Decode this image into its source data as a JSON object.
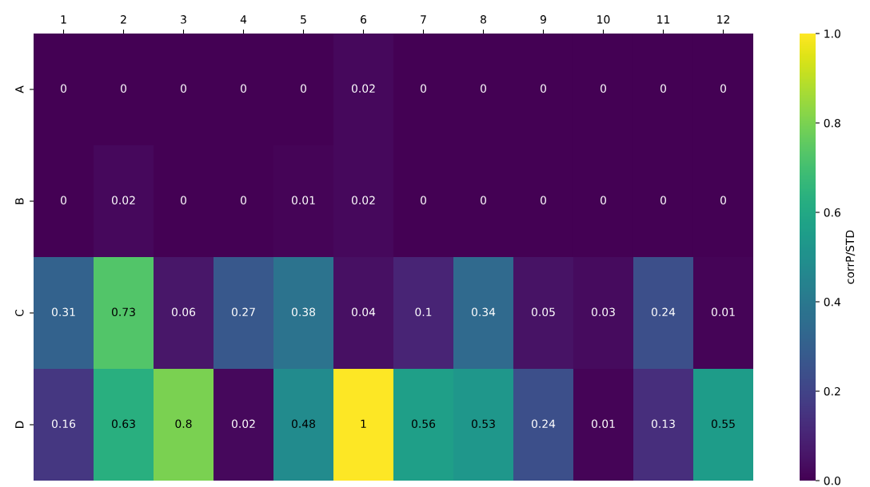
{
  "chart_data": {
    "type": "heatmap",
    "categories": [
      "1",
      "2",
      "3",
      "4",
      "5",
      "6",
      "7",
      "8",
      "9",
      "10",
      "11",
      "12"
    ],
    "y_categories": [
      "A",
      "B",
      "C",
      "D"
    ],
    "cells": [
      [
        0,
        0,
        0,
        0,
        0,
        0.02,
        0,
        0,
        0,
        0,
        0,
        0
      ],
      [
        0,
        0.02,
        0,
        0,
        0.01,
        0.02,
        0,
        0,
        0,
        0,
        0,
        0
      ],
      [
        0.31,
        0.73,
        0.06,
        0.27,
        0.38,
        0.04,
        0.1,
        0.34,
        0.05,
        0.03,
        0.24,
        0.01
      ],
      [
        0.16,
        0.63,
        0.8,
        0.02,
        0.48,
        1,
        0.56,
        0.53,
        0.24,
        0.01,
        0.13,
        0.55
      ]
    ],
    "data_labels": true,
    "clabel": "corrP/STD",
    "clim": [
      0,
      1
    ],
    "cticks": [
      {
        "value": 0,
        "label": "0.0"
      },
      {
        "value": 0.2,
        "label": "0.2"
      },
      {
        "value": 0.4,
        "label": "0.4"
      },
      {
        "value": 0.6,
        "label": "0.6"
      },
      {
        "value": 0.8,
        "label": "0.8"
      },
      {
        "value": 1,
        "label": "1.0"
      }
    ]
  }
}
